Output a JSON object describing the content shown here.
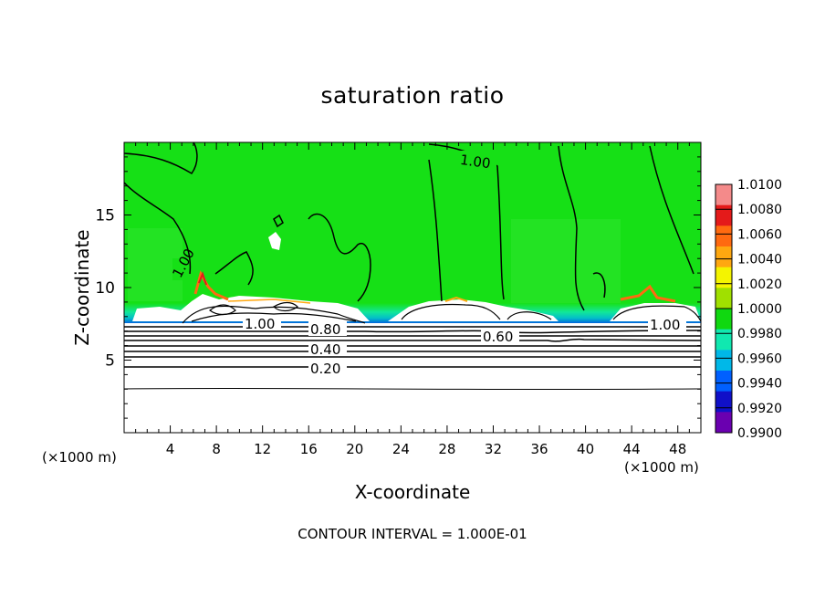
{
  "chart_data": {
    "type": "heatmap",
    "title": "saturation ratio",
    "xlabel": "X-coordinate",
    "ylabel": "Z-coordinate",
    "x_unit": "(×1000 m)",
    "x_ticks": [
      4,
      8,
      12,
      16,
      20,
      24,
      28,
      32,
      36,
      40,
      44,
      48
    ],
    "y_ticks": [
      5,
      10,
      15
    ],
    "xlim": [
      0,
      50
    ],
    "ylim": [
      0,
      20
    ],
    "contour_interval_text": "CONTOUR INTERVAL = 1.000E-01",
    "contour_labels": [
      "1.00",
      "1.00",
      "1.00",
      "0.80",
      "0.60",
      "0.40",
      "0.20",
      "1.00"
    ],
    "colorbar": {
      "ticks": [
        "1.0100",
        "1.0080",
        "1.0060",
        "1.0040",
        "1.0020",
        "1.0000",
        "0.9980",
        "0.9960",
        "0.9940",
        "0.9920",
        "0.9900"
      ],
      "colors": [
        "#f48a8a",
        "#e41a1a",
        "#ff6a10",
        "#ffa810",
        "#f4f400",
        "#a0e000",
        "#10d810",
        "#10e8b0",
        "#00b8e8",
        "#0060ff",
        "#1010c8",
        "#6a00b0"
      ]
    },
    "colors": {
      "field": "#16e016",
      "cloud": "#ffffff",
      "contour": "#000000"
    }
  }
}
